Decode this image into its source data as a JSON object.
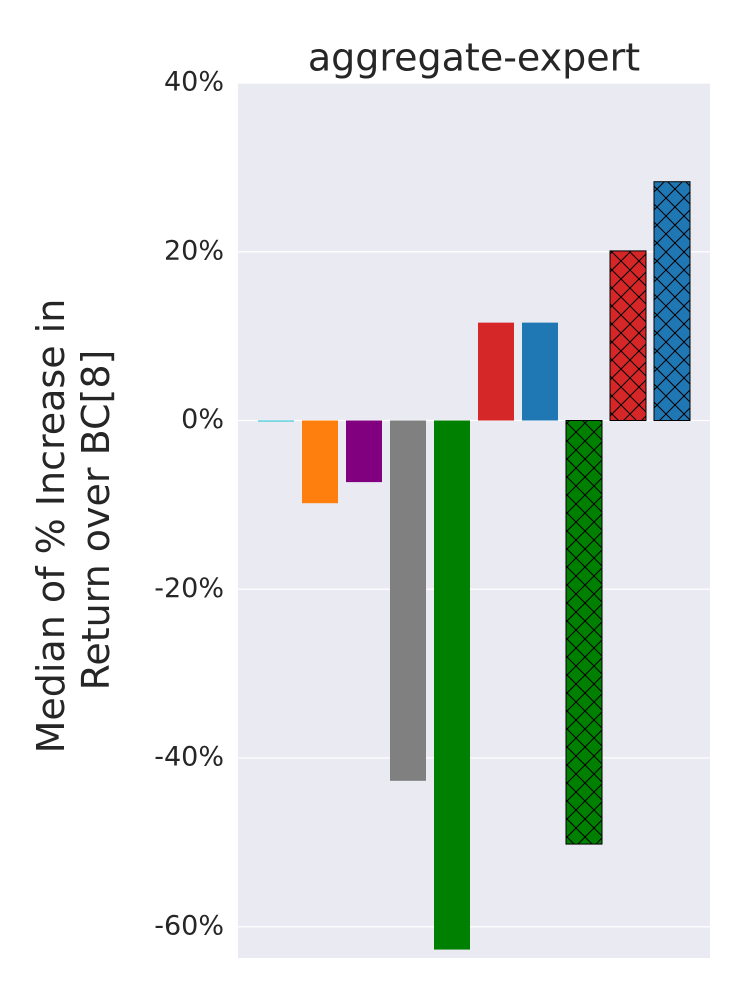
{
  "chart_data": {
    "type": "bar",
    "title": "aggregate-expert",
    "y_label": [
      "Median of % Increase in",
      "Return over BC[8]"
    ],
    "categories": [
      null,
      null,
      null,
      null,
      null,
      null,
      null,
      null,
      null,
      null
    ],
    "values": [
      0,
      -9.8,
      -7.3,
      -42.7,
      -62.7,
      11.6,
      11.6,
      -50.2,
      20.1,
      28.3
    ],
    "colors": [
      "#17becf",
      "#ff7f0e",
      "#800080",
      "#808080",
      "#008000",
      "#d62728",
      "#1f77b4",
      "#008000",
      "#d62728",
      "#1f77b4"
    ],
    "hatch": [
      false,
      false,
      false,
      false,
      false,
      false,
      false,
      true,
      true,
      true
    ],
    "ylim": [
      -63.7,
      40
    ],
    "yticks": [
      {
        "value": -60,
        "label": "-60%"
      },
      {
        "value": -40,
        "label": "-40%"
      },
      {
        "value": -20,
        "label": "-20%"
      },
      {
        "value": 0,
        "label": "0%"
      },
      {
        "value": 20,
        "label": "20%"
      },
      {
        "value": 40,
        "label": "40%"
      }
    ],
    "grid": true
  }
}
